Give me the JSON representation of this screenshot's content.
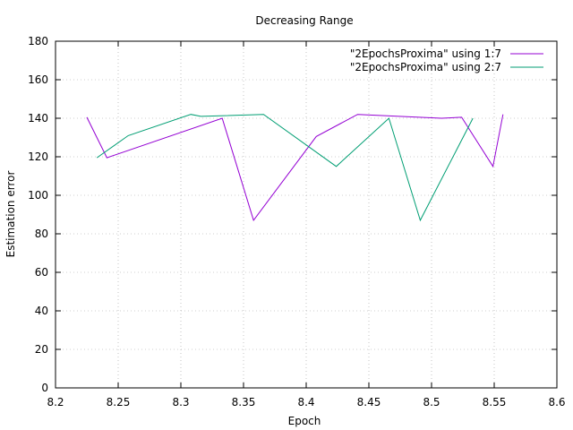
{
  "chart_data": {
    "type": "line",
    "title": "Decreasing Range",
    "xlabel": "Epoch",
    "ylabel": "Estimation error",
    "xlim": [
      8.2,
      8.6
    ],
    "ylim": [
      0,
      180
    ],
    "xticks": [
      "8.2",
      "8.25",
      "8.3",
      "8.35",
      "8.4",
      "8.45",
      "8.5",
      "8.55",
      "8.6"
    ],
    "yticks": [
      "0",
      "20",
      "40",
      "60",
      "80",
      "100",
      "120",
      "140",
      "160",
      "180"
    ],
    "grid": true,
    "legend_position": "top-right",
    "series": [
      {
        "name": "\"2EpochsProxima\" using 1:7",
        "color": "#9400d3",
        "x": [
          8.225,
          8.241,
          8.333,
          8.358,
          8.408,
          8.441,
          8.508,
          8.524,
          8.549,
          8.557
        ],
        "y": [
          140.5,
          119.5,
          140,
          87,
          130.5,
          142,
          140,
          140.5,
          115,
          142
        ]
      },
      {
        "name": "\"2EpochsProxima\" using 2:7",
        "color": "#009e73",
        "x": [
          8.233,
          8.258,
          8.308,
          8.316,
          8.366,
          8.424,
          8.466,
          8.491,
          8.533
        ],
        "y": [
          119.5,
          131,
          142,
          141,
          142,
          115,
          140,
          87,
          140
        ]
      }
    ]
  }
}
